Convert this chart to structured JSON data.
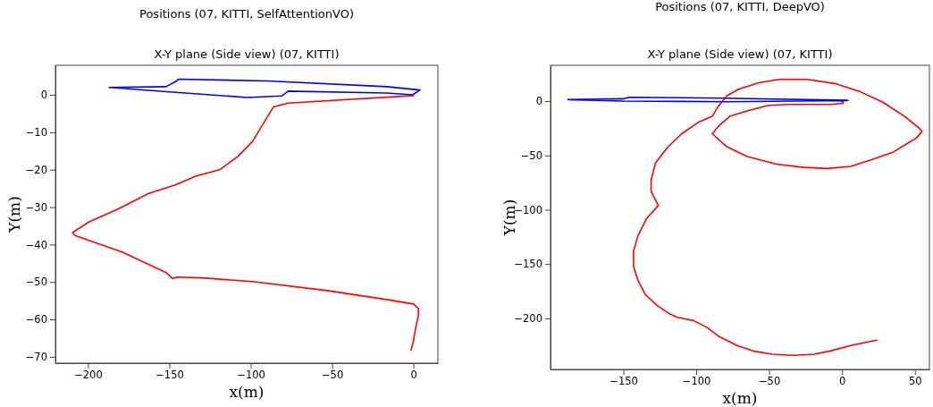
{
  "chart_data": [
    {
      "type": "line",
      "title": "Positions (07, KITTI, SelfAttentionVO)",
      "subtitle": "X-Y plane (Side view) (07, KITTI)",
      "xlabel": "x(m)",
      "ylabel": "Y(m)",
      "xlim": [
        -220,
        15
      ],
      "ylim": [
        -71.7,
        7.9
      ],
      "xticks": [
        -200,
        -150,
        -100,
        -50,
        0
      ],
      "yticks": [
        -70,
        -60,
        -50,
        -40,
        -30,
        -20,
        -10,
        0
      ],
      "series": [
        {
          "color": "#ff0000",
          "x": [
            0,
            -77,
            -86,
            -99,
            -108,
            -119,
            -133.5,
            -146,
            -163,
            -181,
            -199.5,
            -209.5,
            -208,
            -179,
            -152,
            -148,
            -145.5,
            -130,
            -99,
            -53,
            -16.5,
            0,
            3,
            3,
            1,
            0,
            -1.5
          ],
          "values": [
            -0.2,
            -2.2,
            -3.2,
            -12.5,
            -16.5,
            -20,
            -21.7,
            -24,
            -26.4,
            -30.4,
            -34,
            -36.8,
            -37.6,
            -42,
            -47.5,
            -49.1,
            -48.7,
            -48.9,
            -49.9,
            -52.3,
            -54.7,
            -55.9,
            -57.1,
            -59,
            -63,
            -65.8,
            -68.2
          ]
        },
        {
          "color": "#0000ff",
          "x": [
            0,
            4,
            -16.5,
            -89.5,
            -144.5,
            -145.5,
            -152,
            -187,
            -163,
            -102,
            -81,
            -77,
            -16.5,
            -0.5
          ],
          "values": [
            0.2,
            1.3,
            2.2,
            3.7,
            4.2,
            3.7,
            2.2,
            2.0,
            1.2,
            -0.7,
            -0.3,
            1.0,
            0.5,
            0
          ]
        }
      ]
    },
    {
      "type": "line",
      "title": "Positions (07, KITTI, DeepVO)",
      "subtitle": "X-Y plane (Side view) (07, KITTI)",
      "xlabel": "x(m)",
      "ylabel": "Y(m)",
      "xlim": [
        -200,
        60
      ],
      "ylim": [
        -247,
        33
      ],
      "xticks": [
        -150,
        -100,
        -50,
        0,
        50
      ],
      "yticks": [
        -200,
        -150,
        -100,
        -50,
        0
      ],
      "series": [
        {
          "color": "#ff0000",
          "x": [
            0,
            1,
            -8,
            -37,
            -51,
            -65,
            -77,
            -84,
            -89,
            -79,
            -65,
            -45,
            -26,
            -10,
            6,
            20,
            35,
            51,
            55,
            53,
            43,
            28,
            12,
            -4,
            -24,
            -43,
            -57,
            -71,
            -79,
            -85,
            -89,
            -98,
            -110,
            -120,
            -128,
            -131,
            -131,
            -126,
            -134,
            -140,
            -143,
            -143,
            -140,
            -135,
            -127,
            -118,
            -113,
            -102,
            -93,
            -84,
            -72,
            -61,
            -48,
            -33,
            -19,
            -8,
            6,
            24
          ],
          "values": [
            0,
            -2,
            -3,
            -3,
            -4,
            -9,
            -14,
            -22,
            -30,
            -42,
            -51,
            -58,
            -61,
            -62,
            -60,
            -54,
            -47,
            -34,
            -28,
            -25,
            -14,
            -1,
            9,
            16,
            20,
            20,
            17,
            11,
            5,
            -5,
            -14,
            -19,
            -30,
            -43,
            -57,
            -73,
            -83,
            -96,
            -108,
            -124,
            -138,
            -152,
            -165,
            -178,
            -188,
            -196,
            -199,
            -202,
            -208,
            -217,
            -225,
            -230,
            -233,
            -234,
            -233,
            -230,
            -225,
            -220
          ]
        },
        {
          "color": "#0000ff",
          "x": [
            0,
            4,
            -81,
            -146,
            -150,
            -188,
            -150,
            -79,
            0
          ],
          "values": [
            0,
            0.8,
            2.7,
            3.6,
            2.2,
            1.4,
            0,
            -0.5,
            0.5
          ]
        }
      ]
    }
  ]
}
